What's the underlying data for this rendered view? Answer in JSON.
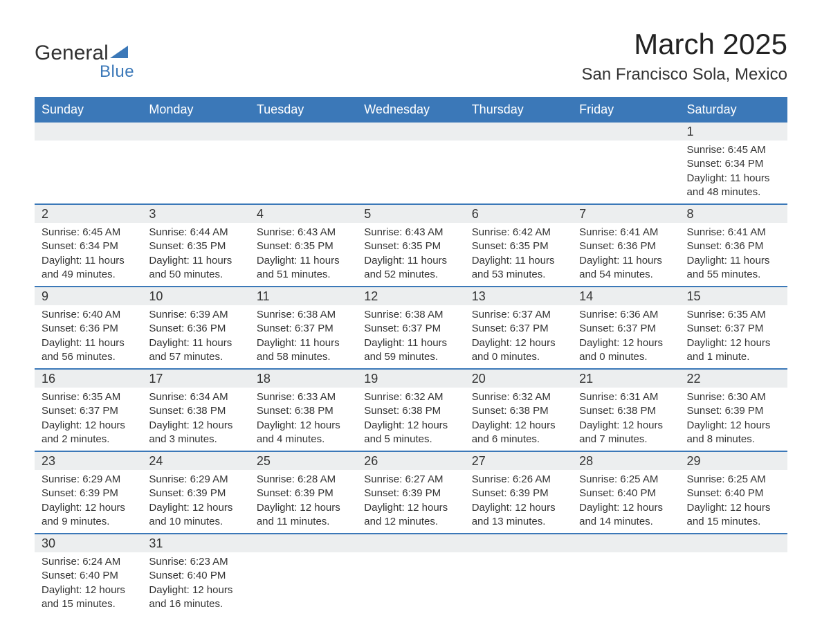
{
  "logo": {
    "word1": "General",
    "word2": "Blue"
  },
  "title": "March 2025",
  "location": "San Francisco Sola, Mexico",
  "colors": {
    "header_bg": "#3b78b8",
    "header_text": "#ffffff",
    "daynum_bg": "#eceeef",
    "row_divider": "#3b78b8",
    "body_text": "#333333",
    "page_bg": "#ffffff"
  },
  "weekdays": [
    "Sunday",
    "Monday",
    "Tuesday",
    "Wednesday",
    "Thursday",
    "Friday",
    "Saturday"
  ],
  "weeks": [
    [
      {
        "empty": true
      },
      {
        "empty": true
      },
      {
        "empty": true
      },
      {
        "empty": true
      },
      {
        "empty": true
      },
      {
        "empty": true
      },
      {
        "day": "1",
        "sunrise": "Sunrise: 6:45 AM",
        "sunset": "Sunset: 6:34 PM",
        "daylight1": "Daylight: 11 hours",
        "daylight2": "and 48 minutes."
      }
    ],
    [
      {
        "day": "2",
        "sunrise": "Sunrise: 6:45 AM",
        "sunset": "Sunset: 6:34 PM",
        "daylight1": "Daylight: 11 hours",
        "daylight2": "and 49 minutes."
      },
      {
        "day": "3",
        "sunrise": "Sunrise: 6:44 AM",
        "sunset": "Sunset: 6:35 PM",
        "daylight1": "Daylight: 11 hours",
        "daylight2": "and 50 minutes."
      },
      {
        "day": "4",
        "sunrise": "Sunrise: 6:43 AM",
        "sunset": "Sunset: 6:35 PM",
        "daylight1": "Daylight: 11 hours",
        "daylight2": "and 51 minutes."
      },
      {
        "day": "5",
        "sunrise": "Sunrise: 6:43 AM",
        "sunset": "Sunset: 6:35 PM",
        "daylight1": "Daylight: 11 hours",
        "daylight2": "and 52 minutes."
      },
      {
        "day": "6",
        "sunrise": "Sunrise: 6:42 AM",
        "sunset": "Sunset: 6:35 PM",
        "daylight1": "Daylight: 11 hours",
        "daylight2": "and 53 minutes."
      },
      {
        "day": "7",
        "sunrise": "Sunrise: 6:41 AM",
        "sunset": "Sunset: 6:36 PM",
        "daylight1": "Daylight: 11 hours",
        "daylight2": "and 54 minutes."
      },
      {
        "day": "8",
        "sunrise": "Sunrise: 6:41 AM",
        "sunset": "Sunset: 6:36 PM",
        "daylight1": "Daylight: 11 hours",
        "daylight2": "and 55 minutes."
      }
    ],
    [
      {
        "day": "9",
        "sunrise": "Sunrise: 6:40 AM",
        "sunset": "Sunset: 6:36 PM",
        "daylight1": "Daylight: 11 hours",
        "daylight2": "and 56 minutes."
      },
      {
        "day": "10",
        "sunrise": "Sunrise: 6:39 AM",
        "sunset": "Sunset: 6:36 PM",
        "daylight1": "Daylight: 11 hours",
        "daylight2": "and 57 minutes."
      },
      {
        "day": "11",
        "sunrise": "Sunrise: 6:38 AM",
        "sunset": "Sunset: 6:37 PM",
        "daylight1": "Daylight: 11 hours",
        "daylight2": "and 58 minutes."
      },
      {
        "day": "12",
        "sunrise": "Sunrise: 6:38 AM",
        "sunset": "Sunset: 6:37 PM",
        "daylight1": "Daylight: 11 hours",
        "daylight2": "and 59 minutes."
      },
      {
        "day": "13",
        "sunrise": "Sunrise: 6:37 AM",
        "sunset": "Sunset: 6:37 PM",
        "daylight1": "Daylight: 12 hours",
        "daylight2": "and 0 minutes."
      },
      {
        "day": "14",
        "sunrise": "Sunrise: 6:36 AM",
        "sunset": "Sunset: 6:37 PM",
        "daylight1": "Daylight: 12 hours",
        "daylight2": "and 0 minutes."
      },
      {
        "day": "15",
        "sunrise": "Sunrise: 6:35 AM",
        "sunset": "Sunset: 6:37 PM",
        "daylight1": "Daylight: 12 hours",
        "daylight2": "and 1 minute."
      }
    ],
    [
      {
        "day": "16",
        "sunrise": "Sunrise: 6:35 AM",
        "sunset": "Sunset: 6:37 PM",
        "daylight1": "Daylight: 12 hours",
        "daylight2": "and 2 minutes."
      },
      {
        "day": "17",
        "sunrise": "Sunrise: 6:34 AM",
        "sunset": "Sunset: 6:38 PM",
        "daylight1": "Daylight: 12 hours",
        "daylight2": "and 3 minutes."
      },
      {
        "day": "18",
        "sunrise": "Sunrise: 6:33 AM",
        "sunset": "Sunset: 6:38 PM",
        "daylight1": "Daylight: 12 hours",
        "daylight2": "and 4 minutes."
      },
      {
        "day": "19",
        "sunrise": "Sunrise: 6:32 AM",
        "sunset": "Sunset: 6:38 PM",
        "daylight1": "Daylight: 12 hours",
        "daylight2": "and 5 minutes."
      },
      {
        "day": "20",
        "sunrise": "Sunrise: 6:32 AM",
        "sunset": "Sunset: 6:38 PM",
        "daylight1": "Daylight: 12 hours",
        "daylight2": "and 6 minutes."
      },
      {
        "day": "21",
        "sunrise": "Sunrise: 6:31 AM",
        "sunset": "Sunset: 6:38 PM",
        "daylight1": "Daylight: 12 hours",
        "daylight2": "and 7 minutes."
      },
      {
        "day": "22",
        "sunrise": "Sunrise: 6:30 AM",
        "sunset": "Sunset: 6:39 PM",
        "daylight1": "Daylight: 12 hours",
        "daylight2": "and 8 minutes."
      }
    ],
    [
      {
        "day": "23",
        "sunrise": "Sunrise: 6:29 AM",
        "sunset": "Sunset: 6:39 PM",
        "daylight1": "Daylight: 12 hours",
        "daylight2": "and 9 minutes."
      },
      {
        "day": "24",
        "sunrise": "Sunrise: 6:29 AM",
        "sunset": "Sunset: 6:39 PM",
        "daylight1": "Daylight: 12 hours",
        "daylight2": "and 10 minutes."
      },
      {
        "day": "25",
        "sunrise": "Sunrise: 6:28 AM",
        "sunset": "Sunset: 6:39 PM",
        "daylight1": "Daylight: 12 hours",
        "daylight2": "and 11 minutes."
      },
      {
        "day": "26",
        "sunrise": "Sunrise: 6:27 AM",
        "sunset": "Sunset: 6:39 PM",
        "daylight1": "Daylight: 12 hours",
        "daylight2": "and 12 minutes."
      },
      {
        "day": "27",
        "sunrise": "Sunrise: 6:26 AM",
        "sunset": "Sunset: 6:39 PM",
        "daylight1": "Daylight: 12 hours",
        "daylight2": "and 13 minutes."
      },
      {
        "day": "28",
        "sunrise": "Sunrise: 6:25 AM",
        "sunset": "Sunset: 6:40 PM",
        "daylight1": "Daylight: 12 hours",
        "daylight2": "and 14 minutes."
      },
      {
        "day": "29",
        "sunrise": "Sunrise: 6:25 AM",
        "sunset": "Sunset: 6:40 PM",
        "daylight1": "Daylight: 12 hours",
        "daylight2": "and 15 minutes."
      }
    ],
    [
      {
        "day": "30",
        "sunrise": "Sunrise: 6:24 AM",
        "sunset": "Sunset: 6:40 PM",
        "daylight1": "Daylight: 12 hours",
        "daylight2": "and 15 minutes."
      },
      {
        "day": "31",
        "sunrise": "Sunrise: 6:23 AM",
        "sunset": "Sunset: 6:40 PM",
        "daylight1": "Daylight: 12 hours",
        "daylight2": "and 16 minutes."
      },
      {
        "empty": true
      },
      {
        "empty": true
      },
      {
        "empty": true
      },
      {
        "empty": true
      },
      {
        "empty": true
      }
    ]
  ]
}
